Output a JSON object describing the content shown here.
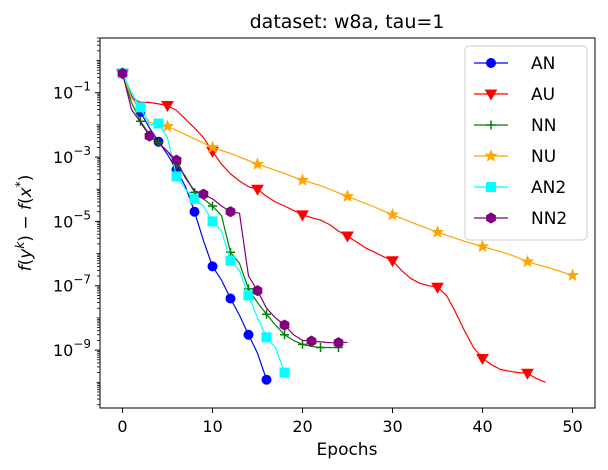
{
  "chart_data": {
    "type": "line",
    "title": "dataset: w8a, tau=1",
    "xlabel": "Epochs",
    "ylabel": "f(y^k) - f(x^*)",
    "yscale": "log",
    "xlim": [
      -2.5,
      52.5
    ],
    "ylim_log10": [
      -10.8,
      0.7
    ],
    "xticks": [
      0,
      10,
      20,
      30,
      40,
      50
    ],
    "xtick_labels": [
      "0",
      "10",
      "20",
      "30",
      "40",
      "50"
    ],
    "yticks_log10": [
      -1,
      -3,
      -5,
      -7,
      -9
    ],
    "ytick_labels": [
      {
        "base": "10",
        "exp": "−1"
      },
      {
        "base": "10",
        "exp": "−3"
      },
      {
        "base": "10",
        "exp": "−5"
      },
      {
        "base": "10",
        "exp": "−7"
      },
      {
        "base": "10",
        "exp": "−9"
      }
    ],
    "legend_position": "upper-right",
    "series": [
      {
        "name": "AN",
        "color": "#0000ff",
        "marker": "circle",
        "line": [
          [
            0,
            0.4
          ],
          [
            1,
            0.08
          ],
          [
            2,
            0.025
          ],
          [
            3,
            0.008
          ],
          [
            4,
            0.003
          ],
          [
            5,
            0.0012
          ],
          [
            6,
            0.0004
          ],
          [
            7,
            0.00012
          ],
          [
            8,
            2e-05
          ],
          [
            9,
            2.5e-06
          ],
          [
            10,
            4e-07
          ],
          [
            11,
            1.5e-07
          ],
          [
            12,
            4e-08
          ],
          [
            13,
            1.2e-08
          ],
          [
            14,
            3e-09
          ],
          [
            15,
            8e-10
          ],
          [
            16,
            1.2e-10
          ]
        ],
        "markers": [
          [
            0,
            0.4
          ],
          [
            2,
            0.025
          ],
          [
            4,
            0.003
          ],
          [
            6,
            0.0004
          ],
          [
            8,
            2e-05
          ],
          [
            10,
            4e-07
          ],
          [
            12,
            4e-08
          ],
          [
            14,
            3e-09
          ],
          [
            16,
            1.2e-10
          ]
        ]
      },
      {
        "name": "AU",
        "color": "#ff0000",
        "marker": "triangle-down",
        "line": [
          [
            0,
            0.4
          ],
          [
            1,
            0.07
          ],
          [
            2,
            0.05
          ],
          [
            3,
            0.05
          ],
          [
            4,
            0.045
          ],
          [
            5,
            0.04
          ],
          [
            6,
            0.028
          ],
          [
            7,
            0.015
          ],
          [
            8,
            0.008
          ],
          [
            9,
            0.004
          ],
          [
            10,
            0.0015
          ],
          [
            11,
            0.0006
          ],
          [
            12,
            0.0003
          ],
          [
            13,
            0.00018
          ],
          [
            14,
            0.00012
          ],
          [
            15,
            0.0001
          ],
          [
            16,
            6e-05
          ],
          [
            17,
            4e-05
          ],
          [
            18,
            3e-05
          ],
          [
            19,
            2.2e-05
          ],
          [
            20,
            1.6e-05
          ],
          [
            21,
            1.3e-05
          ],
          [
            22,
            1.1e-05
          ],
          [
            23,
            8e-06
          ],
          [
            24,
            5e-06
          ],
          [
            25,
            3.5e-06
          ],
          [
            26,
            2.3e-06
          ],
          [
            27,
            1.5e-06
          ],
          [
            28,
            1.1e-06
          ],
          [
            29,
            8e-07
          ],
          [
            30,
            6e-07
          ],
          [
            31,
            3e-07
          ],
          [
            32,
            1.7e-07
          ],
          [
            33,
            1.2e-07
          ],
          [
            34,
            1e-07
          ],
          [
            35,
            9e-08
          ],
          [
            36,
            5e-08
          ],
          [
            37,
            1.5e-08
          ],
          [
            38,
            4e-09
          ],
          [
            39,
            1.2e-09
          ],
          [
            40,
            5.5e-10
          ],
          [
            41,
            3.5e-10
          ],
          [
            42,
            2.5e-10
          ],
          [
            43,
            2.2e-10
          ],
          [
            44,
            2e-10
          ],
          [
            45,
            1.9e-10
          ],
          [
            46,
            1.3e-10
          ],
          [
            47,
            1e-10
          ]
        ],
        "markers": [
          [
            0,
            0.4
          ],
          [
            5,
            0.04
          ],
          [
            10,
            0.0015
          ],
          [
            15,
            0.0001
          ],
          [
            20,
            1.6e-05
          ],
          [
            25,
            3.5e-06
          ],
          [
            30,
            6e-07
          ],
          [
            35,
            9e-08
          ],
          [
            40,
            5.5e-10
          ],
          [
            45,
            1.9e-10
          ]
        ]
      },
      {
        "name": "NN",
        "color": "#008000",
        "marker": "plus",
        "line": [
          [
            0,
            0.4
          ],
          [
            1,
            0.05
          ],
          [
            2,
            0.013
          ],
          [
            3,
            0.005
          ],
          [
            4,
            0.0028
          ],
          [
            5,
            0.0015
          ],
          [
            6,
            0.0006
          ],
          [
            7,
            0.00025
          ],
          [
            8,
            8e-05
          ],
          [
            9,
            5e-05
          ],
          [
            10,
            3e-05
          ],
          [
            11,
            1.5e-05
          ],
          [
            12,
            1.1e-06
          ],
          [
            13,
            5e-07
          ],
          [
            14,
            8e-08
          ],
          [
            15,
            3e-08
          ],
          [
            16,
            1.3e-08
          ],
          [
            17,
            6e-09
          ],
          [
            18,
            3e-09
          ],
          [
            19,
            2e-09
          ],
          [
            20,
            1.5e-09
          ],
          [
            21,
            1.3e-09
          ],
          [
            22,
            1.2e-09
          ],
          [
            23,
            1.2e-09
          ],
          [
            24,
            1.2e-09
          ]
        ],
        "markers": [
          [
            0,
            0.4
          ],
          [
            2,
            0.013
          ],
          [
            4,
            0.0028
          ],
          [
            6,
            0.0006
          ],
          [
            8,
            8e-05
          ],
          [
            10,
            3e-05
          ],
          [
            12,
            1.1e-06
          ],
          [
            14,
            8e-08
          ],
          [
            16,
            1.3e-08
          ],
          [
            18,
            3e-09
          ],
          [
            20,
            1.5e-09
          ],
          [
            22,
            1.2e-09
          ],
          [
            24,
            1.2e-09
          ]
        ]
      },
      {
        "name": "NU",
        "color": "#ffa500",
        "marker": "star",
        "line": [
          [
            0,
            0.4
          ],
          [
            1,
            0.07
          ],
          [
            2,
            0.03
          ],
          [
            3,
            0.012
          ],
          [
            5,
            0.009
          ],
          [
            7,
            0.005
          ],
          [
            10,
            0.002
          ],
          [
            12,
            0.0013
          ],
          [
            15,
            0.0006
          ],
          [
            18,
            0.00031
          ],
          [
            20,
            0.00019
          ],
          [
            22,
            0.00013
          ],
          [
            25,
            6e-05
          ],
          [
            28,
            2.8e-05
          ],
          [
            30,
            1.6e-05
          ],
          [
            33,
            7.5e-06
          ],
          [
            35,
            4.6e-06
          ],
          [
            38,
            2.4e-06
          ],
          [
            40,
            1.65e-06
          ],
          [
            43,
            9.5e-07
          ],
          [
            45,
            5.6e-07
          ],
          [
            48,
            3.2e-07
          ],
          [
            50,
            2.1e-07
          ]
        ],
        "markers": [
          [
            0,
            0.4
          ],
          [
            5,
            0.009
          ],
          [
            10,
            0.002
          ],
          [
            15,
            0.0006
          ],
          [
            20,
            0.00019
          ],
          [
            25,
            6e-05
          ],
          [
            30,
            1.6e-05
          ],
          [
            35,
            4.6e-06
          ],
          [
            40,
            1.65e-06
          ],
          [
            45,
            5.6e-07
          ],
          [
            50,
            2.1e-07
          ]
        ]
      },
      {
        "name": "AN2",
        "color": "#00ffff",
        "marker": "square",
        "line": [
          [
            0,
            0.4
          ],
          [
            1,
            0.1
          ],
          [
            2,
            0.035
          ],
          [
            3,
            0.01
          ],
          [
            4,
            0.011
          ],
          [
            5,
            0.004
          ],
          [
            6,
            0.00025
          ],
          [
            7,
            0.0001
          ],
          [
            8,
            5e-05
          ],
          [
            9,
            3e-05
          ],
          [
            10,
            1e-05
          ],
          [
            11,
            5e-06
          ],
          [
            12,
            6e-07
          ],
          [
            13,
            3e-07
          ],
          [
            14,
            5e-08
          ],
          [
            15,
            1e-08
          ],
          [
            16,
            2.5e-09
          ],
          [
            17,
            1.2e-09
          ],
          [
            18,
            2e-10
          ]
        ],
        "markers": [
          [
            0,
            0.4
          ],
          [
            2,
            0.035
          ],
          [
            4,
            0.011
          ],
          [
            6,
            0.00025
          ],
          [
            8,
            5e-05
          ],
          [
            10,
            1e-05
          ],
          [
            12,
            6e-07
          ],
          [
            14,
            5e-08
          ],
          [
            16,
            2.5e-09
          ],
          [
            18,
            2e-10
          ]
        ]
      },
      {
        "name": "NN2",
        "color": "#800080",
        "marker": "hexagon",
        "line": [
          [
            0,
            0.4
          ],
          [
            1,
            0.03
          ],
          [
            2,
            0.012
          ],
          [
            3,
            0.0045
          ],
          [
            4,
            0.0028
          ],
          [
            5,
            0.0015
          ],
          [
            6,
            0.0008
          ],
          [
            7,
            0.00022
          ],
          [
            8,
            9e-05
          ],
          [
            9,
            7e-05
          ],
          [
            10,
            5e-05
          ],
          [
            11,
            3e-05
          ],
          [
            12,
            2e-05
          ],
          [
            13,
            1.8e-05
          ],
          [
            14,
            2e-07
          ],
          [
            15,
            7e-08
          ],
          [
            16,
            2e-08
          ],
          [
            17,
            1e-08
          ],
          [
            18,
            6e-09
          ],
          [
            19,
            3e-09
          ],
          [
            20,
            2e-09
          ],
          [
            21,
            1.9e-09
          ],
          [
            22,
            1.8e-09
          ],
          [
            23,
            1.7e-09
          ],
          [
            24,
            1.7e-09
          ],
          [
            25,
            1.75e-09
          ]
        ],
        "markers": [
          [
            0,
            0.4
          ],
          [
            3,
            0.0045
          ],
          [
            6,
            0.0008
          ],
          [
            9,
            7e-05
          ],
          [
            12,
            2e-05
          ],
          [
            15,
            7e-08
          ],
          [
            18,
            6e-09
          ],
          [
            21,
            1.9e-09
          ],
          [
            24,
            1.7e-09
          ]
        ]
      }
    ]
  }
}
